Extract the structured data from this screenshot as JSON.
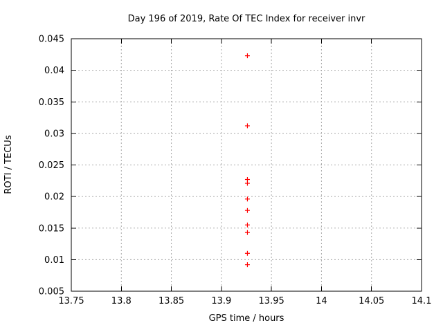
{
  "chart_data": {
    "type": "scatter",
    "title": "Day 196 of 2019, Rate Of TEC Index for receiver invr",
    "xlabel": "GPS time / hours",
    "ylabel": "ROTI / TECUs",
    "xlim": [
      13.75,
      14.1
    ],
    "ylim": [
      0.005,
      0.045
    ],
    "xticks": {
      "values": [
        13.75,
        13.8,
        13.85,
        13.9,
        13.95,
        14,
        14.05,
        14.1
      ],
      "labels": [
        "13.75",
        "13.8",
        "13.85",
        "13.9",
        "13.95",
        "14",
        "14.05",
        "14.1"
      ]
    },
    "yticks": {
      "values": [
        0.005,
        0.01,
        0.015,
        0.02,
        0.025,
        0.03,
        0.035,
        0.04,
        0.045
      ],
      "labels": [
        "0.005",
        "0.01",
        "0.015",
        "0.02",
        "0.025",
        "0.03",
        "0.035",
        "0.04",
        "0.045"
      ]
    },
    "grid": true,
    "grid_style": "dashed",
    "legend": "none",
    "series": [
      {
        "name": "ROTI",
        "marker": "plus",
        "color": "#ff0000",
        "points": [
          {
            "x": 13.926,
            "y": 0.0423
          },
          {
            "x": 13.926,
            "y": 0.0312
          },
          {
            "x": 13.926,
            "y": 0.0227
          },
          {
            "x": 13.926,
            "y": 0.0221
          },
          {
            "x": 13.926,
            "y": 0.0196
          },
          {
            "x": 13.926,
            "y": 0.0178
          },
          {
            "x": 13.926,
            "y": 0.0155
          },
          {
            "x": 13.926,
            "y": 0.0143
          },
          {
            "x": 13.926,
            "y": 0.011
          },
          {
            "x": 13.926,
            "y": 0.0092
          }
        ]
      }
    ],
    "colors": {
      "marker": "#ff0000",
      "grid": "#a8a8a8",
      "axis": "#000000",
      "text": "#000000",
      "background": "#ffffff"
    }
  }
}
